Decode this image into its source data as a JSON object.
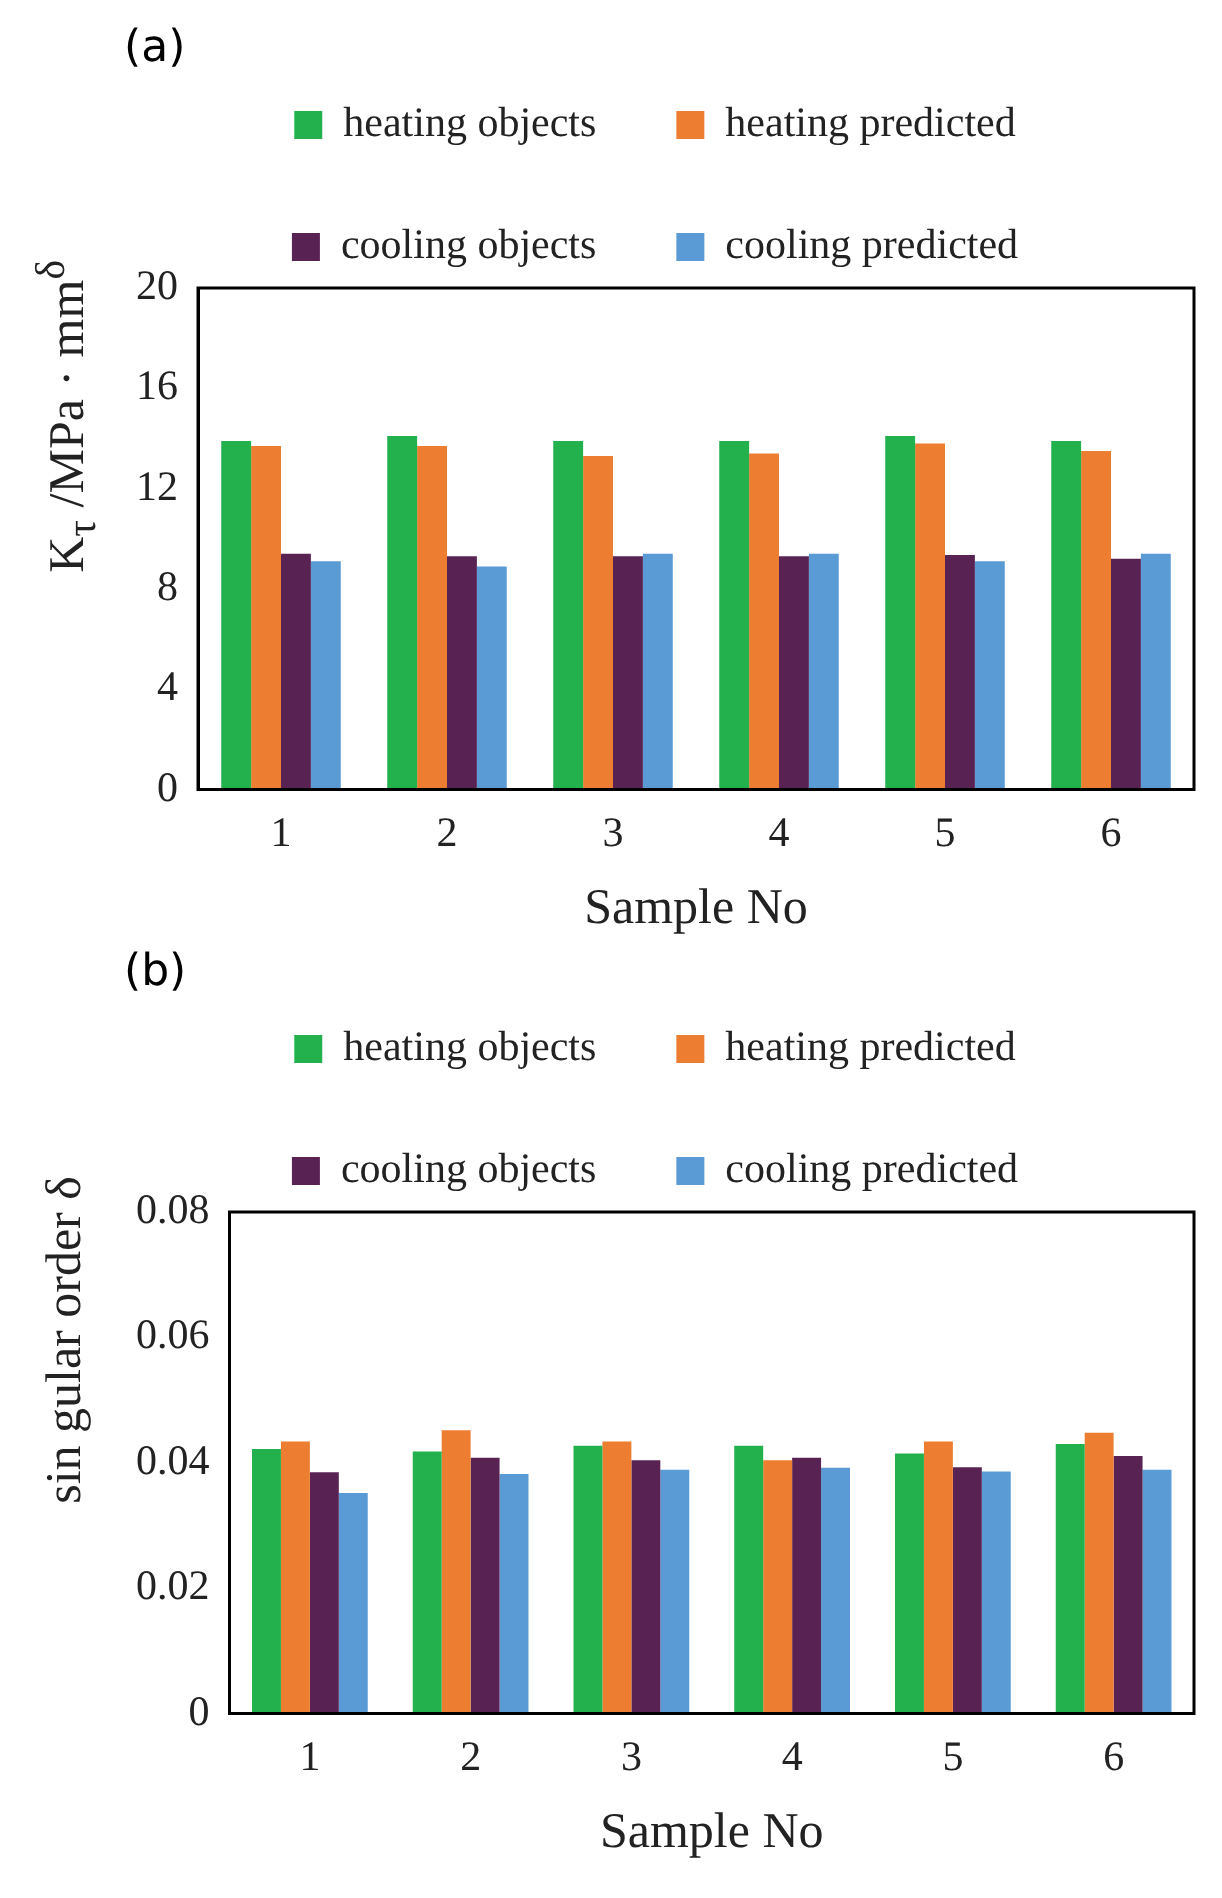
{
  "chart_data": [
    {
      "type": "bar",
      "annotations": [
        "(a)"
      ],
      "ylabel": "K$_{τ}$ /MPa · mm$^{δ}$",
      "xlabel": "Sample No",
      "categories": [
        "1",
        "2",
        "3",
        "4",
        "5",
        "6"
      ],
      "ylim": [
        0,
        20
      ],
      "yticks": [
        0,
        4,
        8,
        12,
        16,
        20
      ],
      "grid": false,
      "legend": "top",
      "series": [
        {
          "name": "heating objects",
          "color": "#22b14c",
          "values": [
            13.9,
            14.1,
            13.9,
            13.9,
            14.1,
            13.9
          ]
        },
        {
          "name": "heating predicted",
          "color": "#ed7d31",
          "values": [
            13.7,
            13.7,
            13.3,
            13.4,
            13.8,
            13.5
          ]
        },
        {
          "name": "cooling objects",
          "color": "#582352",
          "values": [
            9.4,
            9.3,
            9.3,
            9.3,
            9.35,
            9.2
          ]
        },
        {
          "name": "cooling predicted",
          "color": "#5b9bd5",
          "values": [
            9.1,
            8.9,
            9.4,
            9.4,
            9.1,
            9.4
          ]
        }
      ]
    },
    {
      "type": "bar",
      "annotations": [
        "(b)"
      ],
      "ylabel": "sin gular order δ",
      "xlabel": "Sample No",
      "categories": [
        "1",
        "2",
        "3",
        "4",
        "5",
        "6"
      ],
      "ylim": [
        0,
        0.08
      ],
      "yticks": [
        0,
        0.02,
        0.04,
        0.06,
        0.08
      ],
      "grid": false,
      "legend": "top",
      "series": [
        {
          "name": "heating objects",
          "color": "#22b14c",
          "values": [
            0.0422,
            0.0418,
            0.0427,
            0.0427,
            0.0415,
            0.043
          ]
        },
        {
          "name": "heating predicted",
          "color": "#ed7d31",
          "values": [
            0.0434,
            0.0452,
            0.0434,
            0.0404,
            0.0434,
            0.0448
          ]
        },
        {
          "name": "cooling objects",
          "color": "#582352",
          "values": [
            0.0385,
            0.0408,
            0.0404,
            0.0408,
            0.0393,
            0.0411
          ]
        },
        {
          "name": "cooling predicted",
          "color": "#5b9bd5",
          "values": [
            0.0352,
            0.0382,
            0.0389,
            0.0392,
            0.0386,
            0.0389
          ]
        }
      ]
    }
  ]
}
